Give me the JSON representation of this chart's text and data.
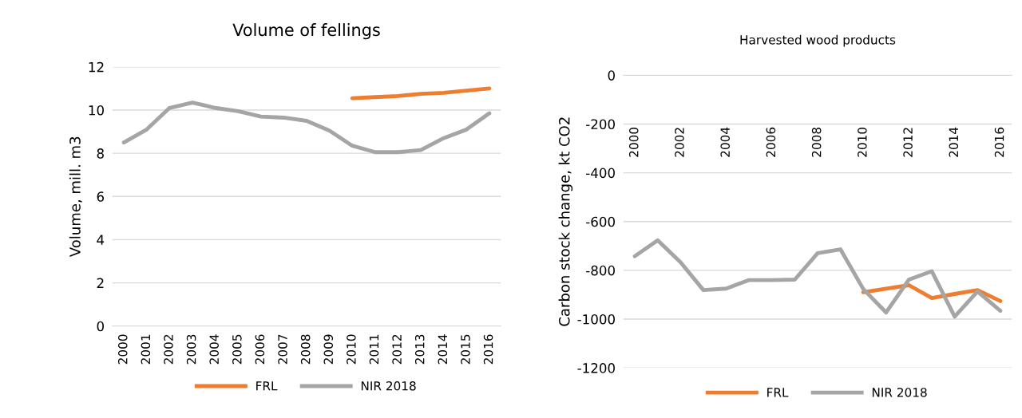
{
  "chart_data": [
    {
      "type": "line",
      "title": "Volume of fellings",
      "ylabel": "Volume, mill. m3",
      "categories": [
        "2000",
        "2001",
        "2002",
        "2003",
        "2004",
        "2005",
        "2006",
        "2007",
        "2008",
        "2009",
        "2010",
        "2011",
        "2012",
        "2013",
        "2014",
        "2015",
        "2016"
      ],
      "series": [
        {
          "name": "FRL",
          "color": "#ed7d31",
          "values": [
            null,
            null,
            null,
            null,
            null,
            null,
            null,
            null,
            null,
            null,
            10.55,
            10.6,
            10.65,
            10.75,
            10.8,
            10.9,
            11.0
          ]
        },
        {
          "name": "NIR 2018",
          "color": "#a5a5a5",
          "values": [
            8.5,
            9.1,
            10.1,
            10.35,
            10.1,
            9.95,
            9.7,
            9.65,
            9.5,
            9.05,
            8.35,
            8.05,
            8.05,
            8.15,
            8.7,
            9.1,
            9.85
          ]
        }
      ],
      "ylim": [
        0,
        12
      ],
      "yticks": [
        0,
        2,
        4,
        6,
        8,
        10,
        12
      ],
      "grid": "y",
      "legend": "bottom"
    },
    {
      "type": "line",
      "title": "Harvested wood products",
      "ylabel": "Carbon stock change, kt CO2",
      "categories": [
        "2000",
        null,
        "2002",
        null,
        "2004",
        null,
        "2006",
        null,
        "2008",
        null,
        "2010",
        null,
        "2012",
        null,
        "2014",
        null,
        "2016"
      ],
      "series": [
        {
          "name": "FRL",
          "color": "#ed7d31",
          "values": [
            null,
            null,
            null,
            null,
            null,
            null,
            null,
            null,
            null,
            null,
            -890,
            -875,
            -861,
            -914,
            -897,
            -881,
            -926
          ]
        },
        {
          "name": "NIR 2018",
          "color": "#a5a5a5",
          "values": [
            -742,
            -677,
            -767,
            -881,
            -875,
            -840,
            -840,
            -838,
            -730,
            -714,
            -877,
            -973,
            -838,
            -804,
            -990,
            -887,
            -966
          ]
        }
      ],
      "ylim": [
        -1200,
        0
      ],
      "yticks": [
        -1200,
        -1000,
        -800,
        -600,
        -400,
        -200,
        0
      ],
      "grid": "y",
      "legend": "bottom"
    }
  ]
}
